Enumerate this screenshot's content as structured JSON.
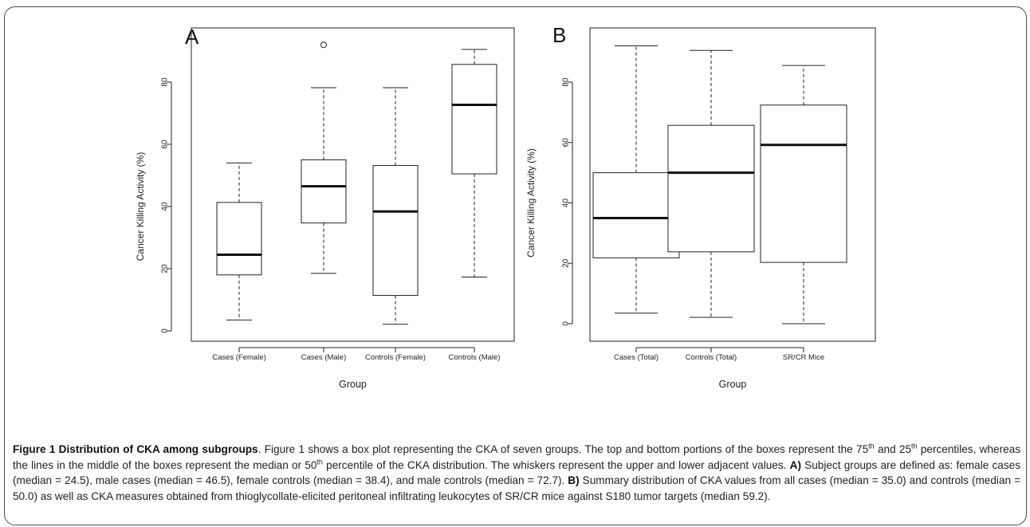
{
  "chart_data": [
    {
      "panel": "A",
      "type": "box",
      "xlabel": "Group",
      "ylabel": "Cancer Killing Activity (%)",
      "ylim": [
        0,
        93
      ],
      "yticks": [
        "0",
        "20",
        "40",
        "60",
        "80"
      ],
      "categories": [
        "Cases (Female)",
        "Cases (Male)",
        "Controls (Female)",
        "Controls (Male)"
      ],
      "boxes": [
        {
          "whisker_low": 3.5,
          "q1": 18.0,
          "median": 24.5,
          "q3": 41.3,
          "whisker_high": 54.0,
          "outliers": []
        },
        {
          "whisker_low": 18.5,
          "q1": 34.7,
          "median": 46.5,
          "q3": 55.0,
          "whisker_high": 78.2,
          "outliers": [
            92.0
          ]
        },
        {
          "whisker_low": 2.1,
          "q1": 11.4,
          "median": 38.4,
          "q3": 53.2,
          "whisker_high": 78.2,
          "outliers": []
        },
        {
          "whisker_low": 17.3,
          "q1": 50.5,
          "median": 72.7,
          "q3": 85.7,
          "whisker_high": 90.5,
          "outliers": []
        }
      ]
    },
    {
      "panel": "B",
      "type": "box",
      "xlabel": "Group",
      "ylabel": "Cancer Killing Activity (%)",
      "ylim": [
        0,
        92
      ],
      "yticks": [
        "0",
        "20",
        "40",
        "60",
        "80"
      ],
      "categories": [
        "Cases (Total)",
        "Controls (Total)",
        "SR/CR Mice"
      ],
      "boxes": [
        {
          "whisker_low": 3.5,
          "q1": 21.8,
          "median": 35.0,
          "q3": 50.0,
          "whisker_high": 92.0,
          "outliers": []
        },
        {
          "whisker_low": 2.1,
          "q1": 23.8,
          "median": 50.0,
          "q3": 65.7,
          "whisker_high": 90.5,
          "outliers": []
        },
        {
          "whisker_low": 0.0,
          "q1": 20.3,
          "median": 59.2,
          "q3": 72.4,
          "whisker_high": 85.5,
          "outliers": []
        }
      ]
    }
  ],
  "caption": {
    "title": "Figure 1 Distribution of CKA among subgroups",
    "l1": ". Figure 1 shows a box plot representing the CKA of seven groups. The top and bottom",
    "l2a": "portions of the boxes represent the 75",
    "sup_th1": "th",
    "l2b": " and 25",
    "sup_th2": "th",
    "l2c": " percentiles, whereas the lines in the middle of the boxes represent the median or 50",
    "sup_th3": "th",
    "l3": "percentile of the CKA distribution. The whiskers represent the upper and lower adjacent values.",
    "a_label": "A)",
    "l3b": " Subject groups are defined as: female cases",
    "l4": "(median = 24.5), male cases (median = 46.5), female controls (median = 38.4), and male controls (median = 72.7).",
    "b_label": "B)",
    "l4b": " Summary distribution of",
    "l5": "CKA values from all cases (median = 35.0) and controls (median = 50.0) as well as CKA measures obtained from thioglycollate-elicited peritoneal",
    "l6": "infiltrating leukocytes of SR/CR mice against S180 tumor targets (median 59.2)."
  }
}
